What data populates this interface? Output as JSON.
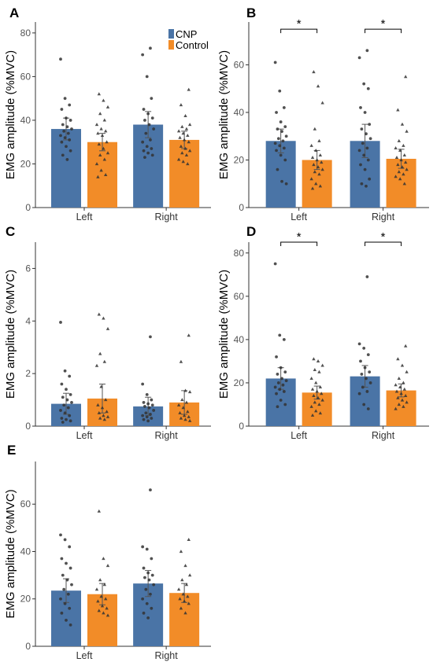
{
  "figure": {
    "colors": {
      "CNP": "#4a74a6",
      "Control": "#f28c28",
      "axis": "#333333",
      "points": "#333333"
    },
    "legend": [
      {
        "name": "CNP",
        "color": "#4a74a6"
      },
      {
        "name": "Control",
        "color": "#f28c28"
      }
    ]
  },
  "chart_data": [
    {
      "panel": "A",
      "type": "bar",
      "ylabel": "EMG amplitude (%MVC)",
      "categories": [
        "Left",
        "Right"
      ],
      "ylim": [
        0,
        85
      ],
      "yticks": [
        0,
        20,
        40,
        60,
        80
      ],
      "legend": "top-right",
      "series": [
        {
          "name": "CNP",
          "values": [
            36,
            38
          ],
          "errors": [
            5,
            6
          ],
          "points": [
            [
              68,
              50,
              47,
              45,
              41,
              40,
              38,
              37,
              36,
              35,
              34,
              33,
              32,
              31,
              30,
              28,
              26,
              24,
              22
            ],
            [
              73,
              70,
              60,
              50,
              45,
              43,
              41,
              40,
              38,
              36,
              34,
              31,
              30,
              28,
              27,
              26,
              25,
              24,
              23
            ]
          ]
        },
        {
          "name": "Control",
          "values": [
            30,
            31
          ],
          "errors": [
            4,
            4
          ],
          "points": [
            [
              52,
              49,
              46,
              43,
              40,
              38,
              36,
              35,
              34,
              33,
              30,
              29,
              27,
              25,
              24,
              22,
              20,
              17,
              15,
              14
            ],
            [
              54,
              47,
              42,
              38,
              37,
              36,
              35,
              34,
              33,
              32,
              31,
              30,
              28,
              27,
              26,
              25,
              24,
              22,
              21,
              20
            ]
          ]
        }
      ],
      "significance": []
    },
    {
      "panel": "B",
      "type": "bar",
      "ylabel": "EMG amplitude (%MVC)",
      "categories": [
        "Left",
        "Right"
      ],
      "ylim": [
        0,
        78
      ],
      "yticks": [
        0,
        20,
        40,
        60
      ],
      "series": [
        {
          "name": "CNP",
          "values": [
            28,
            28
          ],
          "errors": [
            5,
            7
          ],
          "points": [
            [
              61,
              49,
              42,
              40,
              36,
              34,
              33,
              32,
              30,
              29,
              28,
              27,
              26,
              25,
              24,
              22,
              20,
              16,
              11,
              10
            ],
            [
              66,
              63,
              52,
              50,
              42,
              40,
              35,
              33,
              31,
              29,
              27,
              25,
              24,
              22,
              20,
              18,
              16,
              12,
              10,
              9
            ]
          ]
        },
        {
          "name": "Control",
          "values": [
            20,
            20.5
          ],
          "errors": [
            4,
            4
          ],
          "points": [
            [
              57,
              51,
              44,
              33,
              28,
              26,
              24,
              22,
              21,
              20,
              19,
              18,
              17,
              16,
              15,
              14,
              12,
              10,
              9,
              8
            ],
            [
              55,
              41,
              35,
              32,
              28,
              26,
              25,
              24,
              22,
              21,
              20,
              19,
              18,
              17,
              16,
              15,
              14,
              13,
              12,
              10
            ]
          ]
        }
      ],
      "significance": [
        {
          "category": "Left",
          "label": "*",
          "y": 75
        },
        {
          "category": "Right",
          "label": "*",
          "y": 75
        }
      ]
    },
    {
      "panel": "C",
      "type": "bar",
      "ylabel": "EMG amplitude (%MVC)",
      "categories": [
        "Left",
        "Right"
      ],
      "ylim": [
        0,
        7
      ],
      "yticks": [
        0,
        2,
        4,
        6
      ],
      "series": [
        {
          "name": "CNP",
          "values": [
            0.85,
            0.75
          ],
          "errors": [
            0.4,
            0.35
          ],
          "points": [
            [
              3.95,
              2.1,
              1.9,
              1.6,
              1.4,
              1.2,
              1.1,
              1.0,
              0.9,
              0.8,
              0.7,
              0.6,
              0.5,
              0.4,
              0.3,
              0.25,
              0.2,
              0.15
            ],
            [
              3.4,
              1.6,
              1.2,
              1.0,
              0.9,
              0.85,
              0.8,
              0.75,
              0.7,
              0.6,
              0.5,
              0.45,
              0.4,
              0.35,
              0.3,
              0.25,
              0.2
            ]
          ]
        },
        {
          "name": "Control",
          "values": [
            1.05,
            0.9
          ],
          "errors": [
            0.55,
            0.45
          ],
          "points": [
            [
              4.25,
              4.1,
              3.7,
              2.75,
              2.45,
              2.3,
              1.5,
              1.0,
              0.8,
              0.7,
              0.55,
              0.5,
              0.4,
              0.35,
              0.3,
              0.25
            ],
            [
              3.45,
              2.45,
              1.35,
              1.3,
              1.0,
              0.9,
              0.8,
              0.7,
              0.55,
              0.5,
              0.4,
              0.35,
              0.3,
              0.25,
              0.2
            ]
          ]
        }
      ],
      "significance": []
    },
    {
      "panel": "D",
      "type": "bar",
      "ylabel": "EMG amplitude (%MVC)",
      "categories": [
        "Left",
        "Right"
      ],
      "ylim": [
        0,
        85
      ],
      "yticks": [
        0,
        20,
        40,
        60,
        80
      ],
      "series": [
        {
          "name": "CNP",
          "values": [
            22,
            23
          ],
          "errors": [
            5,
            5
          ],
          "points": [
            [
              75,
              42,
              40,
              32,
              27,
              25,
              24,
              22,
              21,
              20,
              19,
              18,
              17,
              16,
              15,
              12,
              10,
              9
            ],
            [
              69,
              38,
              36,
              33,
              30,
              27,
              25,
              24,
              22,
              20,
              18,
              16,
              15,
              10,
              8
            ]
          ]
        },
        {
          "name": "Control",
          "values": [
            15.5,
            16.5
          ],
          "errors": [
            3,
            3
          ],
          "points": [
            [
              31,
              30,
              28,
              26,
              25,
              22,
              20,
              18,
              17,
              16,
              15,
              14,
              13,
              12,
              11,
              10,
              9,
              7,
              6,
              5
            ],
            [
              37,
              31,
              28,
              25,
              22,
              20,
              19,
              18,
              17,
              16,
              15,
              14,
              13,
              12,
              11,
              10,
              9,
              8
            ]
          ]
        }
      ],
      "significance": [
        {
          "category": "Left",
          "label": "*",
          "y": 85
        },
        {
          "category": "Right",
          "label": "*",
          "y": 85
        }
      ]
    },
    {
      "panel": "E",
      "type": "bar",
      "ylabel": "EMG amplitude (%MVC)",
      "categories": [
        "Left",
        "Right"
      ],
      "ylim": [
        0,
        78
      ],
      "yticks": [
        0,
        20,
        40,
        60
      ],
      "series": [
        {
          "name": "CNP",
          "values": [
            23.5,
            26.5
          ],
          "errors": [
            5,
            5.5
          ],
          "points": [
            [
              47,
              45,
              42,
              37,
              35,
              33,
              30,
              28,
              26,
              24,
              22,
              20,
              18,
              16,
              14,
              11,
              9
            ],
            [
              66,
              42,
              41,
              37,
              33,
              31,
              30,
              29,
              28,
              26,
              24,
              22,
              20,
              18,
              16,
              14,
              12
            ]
          ]
        },
        {
          "name": "Control",
          "values": [
            22,
            22.5
          ],
          "errors": [
            4.5,
            4
          ],
          "points": [
            [
              57,
              37,
              34,
              28,
              26,
              24,
              21,
              20,
              19,
              17,
              16,
              15,
              14,
              13
            ],
            [
              45,
              40,
              34,
              30,
              28,
              26,
              24,
              22,
              21,
              20,
              19,
              18,
              16,
              14
            ]
          ]
        }
      ],
      "significance": []
    }
  ]
}
